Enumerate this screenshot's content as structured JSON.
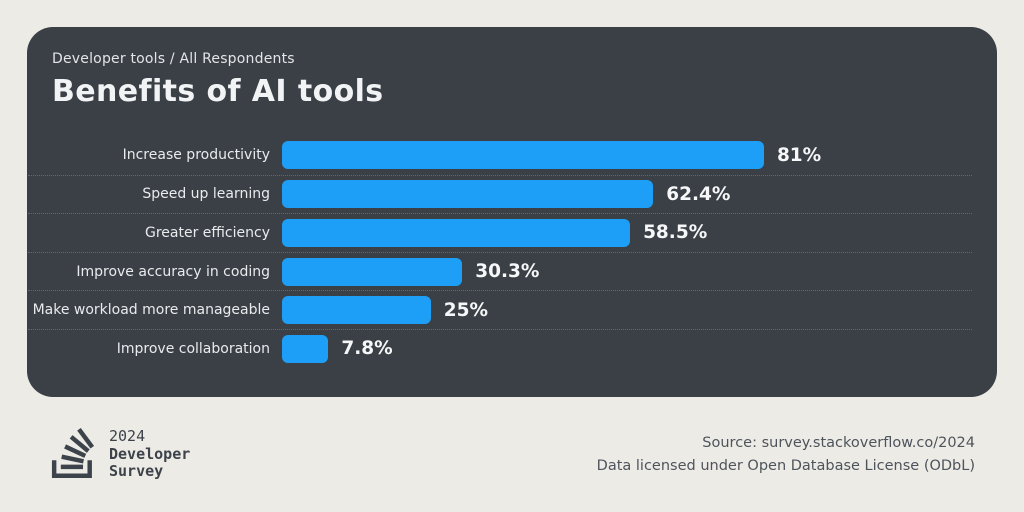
{
  "card": {
    "background_color": "#3a4046"
  },
  "chart_data": {
    "type": "bar",
    "orientation": "horizontal",
    "title": "Benefits of AI tools",
    "subtitle": "Developer tools / All Respondents",
    "categories": [
      "Increase productivity",
      "Speed up learning",
      "Greater efficiency",
      "Improve accuracy in coding",
      "Make workload more manageable",
      "Improve collaboration"
    ],
    "values": [
      81,
      62.4,
      58.5,
      30.3,
      25,
      7.8
    ],
    "value_labels": [
      "81%",
      "62.4%",
      "58.5%",
      "30.3%",
      "25%",
      "7.8%"
    ],
    "unit": "%",
    "xlim": [
      0,
      100
    ],
    "grid": false,
    "value_label_position": "end-of-bar",
    "bar_color": "#1e9ff7",
    "label_color": "#e9ebee",
    "value_color": "#f6f7f8"
  },
  "footer": {
    "logo": {
      "icon": "stackoverflow-icon",
      "year": "2024",
      "line1": "Developer",
      "line2": "Survey"
    },
    "source_line1": "Source: survey.stackoverflow.co/2024",
    "source_line2": "Data licensed under Open Database License (ODbL)"
  }
}
